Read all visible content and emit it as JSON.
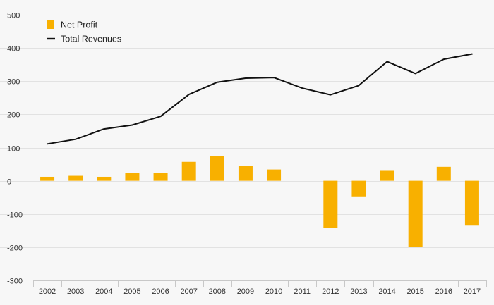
{
  "chart_data": {
    "type": "bar",
    "categories": [
      "2002",
      "2003",
      "2004",
      "2005",
      "2006",
      "2007",
      "2008",
      "2009",
      "2010",
      "2011",
      "2012",
      "2013",
      "2014",
      "2015",
      "2016",
      "2017"
    ],
    "series": [
      {
        "name": "Net Profit",
        "type": "bar",
        "color": "#f8b000",
        "values": [
          12,
          15,
          12,
          23,
          23,
          57,
          74,
          44,
          34,
          0,
          -142,
          -47,
          30,
          -200,
          42,
          -135
        ]
      },
      {
        "name": "Total Revenues",
        "type": "line",
        "color": "#111111",
        "values": [
          111,
          125,
          156,
          168,
          194,
          260,
          297,
          309,
          311,
          279,
          259,
          287,
          359,
          323,
          366,
          382
        ]
      }
    ],
    "ylim": [
      -300,
      500
    ],
    "yticks": [
      -300,
      -200,
      -100,
      0,
      100,
      200,
      300,
      400,
      500
    ],
    "ytick_labels": [
      "-300",
      "-200",
      "-100",
      "0",
      "100",
      "200",
      "300",
      "400",
      "500"
    ],
    "title": "",
    "xlabel": "",
    "ylabel": "",
    "grid": true,
    "legend_position": "top-left"
  },
  "legend": {
    "items": [
      {
        "label": "Net Profit",
        "color": "#f8b000",
        "marker": "square-icon"
      },
      {
        "label": "Total Revenues",
        "color": "#111111",
        "marker": "line-icon"
      }
    ]
  }
}
